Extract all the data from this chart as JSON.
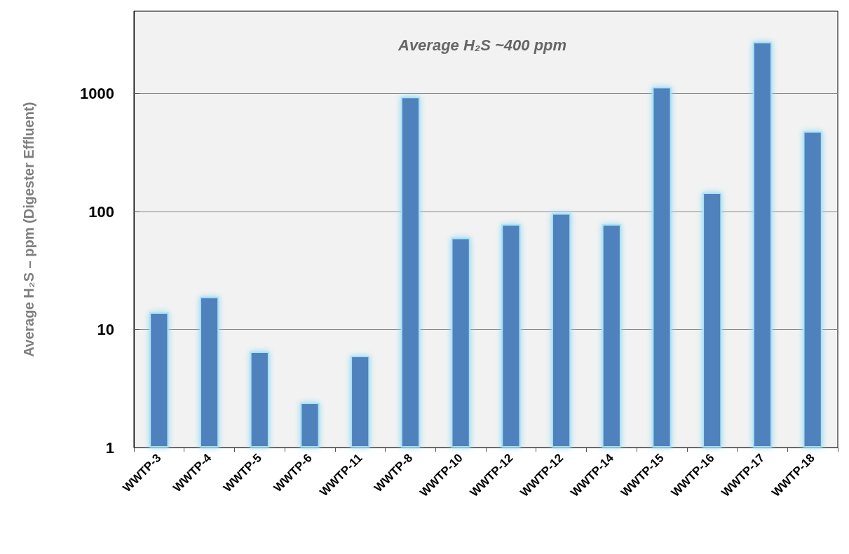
{
  "chart_data": {
    "type": "bar",
    "ylabel": "Average H₂S – ppm (Digester Effluent)",
    "annotations": [
      "Average H₂S ~400 ppm"
    ],
    "categories": [
      "WWTP-3",
      "WWTP-4",
      "WWTP-5",
      "WWTP-6",
      "WWTP-11",
      "WWTP-8",
      "WWTP-10",
      "WWTP-12",
      "WWTP-12",
      "WWTP-14",
      "WWTP-15",
      "WWTP-16",
      "WWTP-17",
      "WWTP-18"
    ],
    "values": [
      14,
      19,
      6.5,
      2.4,
      6,
      940,
      60,
      78,
      97,
      78,
      1140,
      145,
      2750,
      480
    ],
    "color": "#4f81bd",
    "log": true,
    "ylim": [
      1,
      5000
    ],
    "yticks": [
      1,
      10,
      100,
      1000
    ],
    "grid": "y"
  }
}
